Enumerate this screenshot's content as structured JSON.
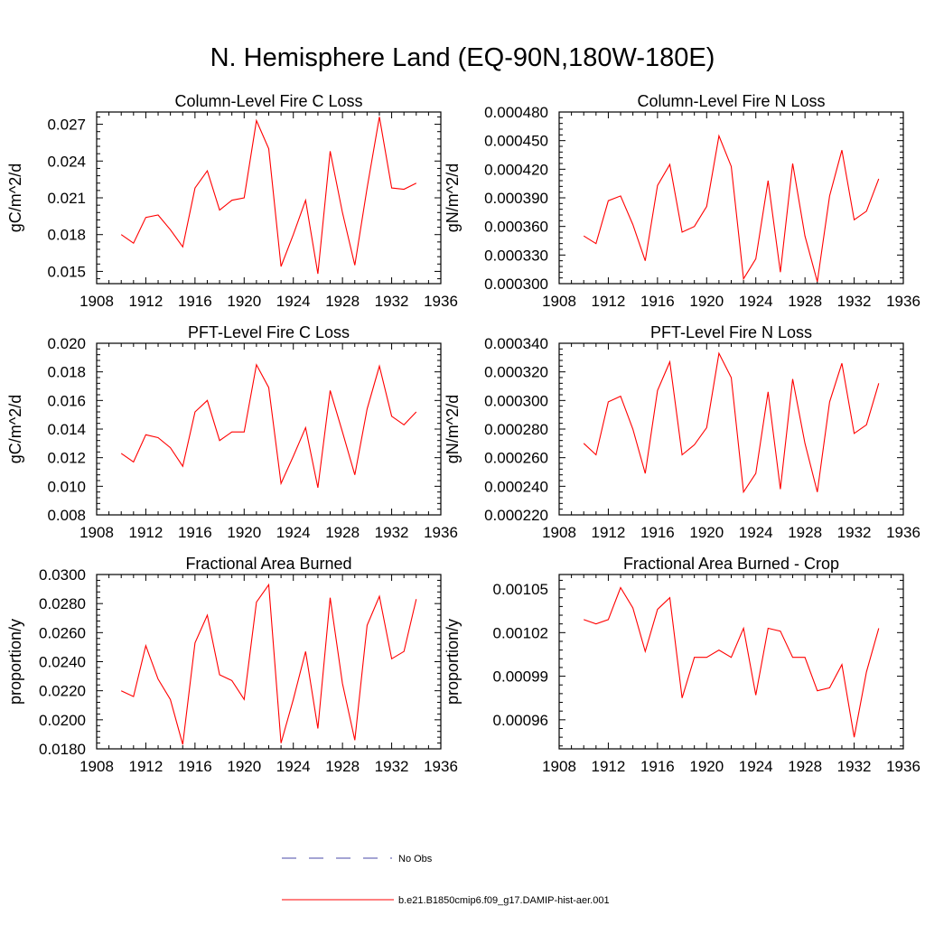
{
  "title": "N. Hemisphere Land (EQ-90N,180W-180E)",
  "legend": {
    "entries": [
      {
        "label": "No Obs",
        "color": "#4a4aa8",
        "style": "dashed"
      },
      {
        "label": "b.e21.B1850cmip6.f09_g17.DAMIP-hist-aer.001",
        "color": "#ff0000",
        "style": "solid"
      }
    ]
  },
  "chart_data": [
    {
      "type": "line",
      "title": "Column-Level Fire C Loss",
      "xlabel": "",
      "ylabel": "gC/m^2/d",
      "xlim": [
        1908,
        1936
      ],
      "xticks": [
        "1908",
        "1912",
        "1916",
        "1920",
        "1924",
        "1928",
        "1932",
        "1936"
      ],
      "ylim": [
        0.014,
        0.028
      ],
      "yticks": [
        "0.015",
        "0.018",
        "0.021",
        "0.024",
        "0.027"
      ],
      "ytick_values": [
        0.015,
        0.018,
        0.021,
        0.024,
        0.027
      ],
      "grid": false,
      "series": [
        {
          "color": "#ff0000",
          "x": [
            1910,
            1911,
            1912,
            1913,
            1914,
            1915,
            1916,
            1917,
            1918,
            1919,
            1920,
            1921,
            1922,
            1923,
            1924,
            1925,
            1926,
            1927,
            1928,
            1929,
            1930,
            1931,
            1932,
            1933,
            1934
          ],
          "values": [
            0.018,
            0.0173,
            0.0194,
            0.0196,
            0.0184,
            0.017,
            0.0218,
            0.0232,
            0.02,
            0.0208,
            0.021,
            0.0273,
            0.025,
            0.0154,
            0.018,
            0.0208,
            0.0148,
            0.0248,
            0.0198,
            0.0155,
            0.0218,
            0.0276,
            0.0218,
            0.0217,
            0.0222
          ]
        }
      ]
    },
    {
      "type": "line",
      "title": "Column-Level Fire N Loss",
      "xlabel": "",
      "ylabel": "gN/m^2/d",
      "xlim": [
        1908,
        1936
      ],
      "xticks": [
        "1908",
        "1912",
        "1916",
        "1920",
        "1924",
        "1928",
        "1932",
        "1936"
      ],
      "ylim": [
        0.0003,
        0.00048
      ],
      "yticks": [
        "0.000300",
        "0.000330",
        "0.000360",
        "0.000390",
        "0.000420",
        "0.000450",
        "0.000480"
      ],
      "ytick_values": [
        0.0003,
        0.00033,
        0.00036,
        0.00039,
        0.00042,
        0.00045,
        0.00048
      ],
      "grid": false,
      "series": [
        {
          "color": "#ff0000",
          "x": [
            1910,
            1911,
            1912,
            1913,
            1914,
            1915,
            1916,
            1917,
            1918,
            1919,
            1920,
            1921,
            1922,
            1923,
            1924,
            1925,
            1926,
            1927,
            1928,
            1929,
            1930,
            1931,
            1932,
            1933,
            1934
          ],
          "values": [
            0.00035,
            0.000342,
            0.000387,
            0.000392,
            0.000362,
            0.000324,
            0.000403,
            0.000425,
            0.000354,
            0.00036,
            0.000381,
            0.000455,
            0.000423,
            0.000305,
            0.000326,
            0.000408,
            0.000312,
            0.000426,
            0.00035,
            0.000302,
            0.000392,
            0.00044,
            0.000367,
            0.000376,
            0.00041
          ]
        }
      ]
    },
    {
      "type": "line",
      "title": "PFT-Level Fire C Loss",
      "xlabel": "",
      "ylabel": "gC/m^2/d",
      "xlim": [
        1908,
        1936
      ],
      "xticks": [
        "1908",
        "1912",
        "1916",
        "1920",
        "1924",
        "1928",
        "1932",
        "1936"
      ],
      "ylim": [
        0.008,
        0.02
      ],
      "yticks": [
        "0.008",
        "0.010",
        "0.012",
        "0.014",
        "0.016",
        "0.018",
        "0.020"
      ],
      "ytick_values": [
        0.008,
        0.01,
        0.012,
        0.014,
        0.016,
        0.018,
        0.02
      ],
      "grid": false,
      "series": [
        {
          "color": "#ff0000",
          "x": [
            1910,
            1911,
            1912,
            1913,
            1914,
            1915,
            1916,
            1917,
            1918,
            1919,
            1920,
            1921,
            1922,
            1923,
            1924,
            1925,
            1926,
            1927,
            1928,
            1929,
            1930,
            1931,
            1932,
            1933,
            1934
          ],
          "values": [
            0.0123,
            0.0117,
            0.0136,
            0.0134,
            0.0127,
            0.0114,
            0.0152,
            0.016,
            0.0132,
            0.0138,
            0.0138,
            0.0185,
            0.0169,
            0.0102,
            0.0121,
            0.0141,
            0.0099,
            0.0167,
            0.0138,
            0.0108,
            0.0154,
            0.0184,
            0.0149,
            0.0143,
            0.0152
          ]
        }
      ]
    },
    {
      "type": "line",
      "title": "PFT-Level Fire N Loss",
      "xlabel": "",
      "ylabel": "gN/m^2/d",
      "xlim": [
        1908,
        1936
      ],
      "xticks": [
        "1908",
        "1912",
        "1916",
        "1920",
        "1924",
        "1928",
        "1932",
        "1936"
      ],
      "ylim": [
        0.00022,
        0.00034
      ],
      "yticks": [
        "0.000220",
        "0.000240",
        "0.000260",
        "0.000280",
        "0.000300",
        "0.000320",
        "0.000340"
      ],
      "ytick_values": [
        0.00022,
        0.00024,
        0.00026,
        0.00028,
        0.0003,
        0.00032,
        0.00034
      ],
      "grid": false,
      "series": [
        {
          "color": "#ff0000",
          "x": [
            1910,
            1911,
            1912,
            1913,
            1914,
            1915,
            1916,
            1917,
            1918,
            1919,
            1920,
            1921,
            1922,
            1923,
            1924,
            1925,
            1926,
            1927,
            1928,
            1929,
            1930,
            1931,
            1932,
            1933,
            1934
          ],
          "values": [
            0.00027,
            0.000262,
            0.000299,
            0.000303,
            0.00028,
            0.000249,
            0.000307,
            0.000327,
            0.000262,
            0.000269,
            0.000281,
            0.000333,
            0.000316,
            0.000236,
            0.000249,
            0.000306,
            0.000238,
            0.000315,
            0.00027,
            0.000236,
            0.000299,
            0.000326,
            0.000277,
            0.000283,
            0.000312
          ]
        }
      ]
    },
    {
      "type": "line",
      "title": "Fractional Area Burned",
      "xlabel": "",
      "ylabel": "proportion/y",
      "xlim": [
        1908,
        1936
      ],
      "xticks": [
        "1908",
        "1912",
        "1916",
        "1920",
        "1924",
        "1928",
        "1932",
        "1936"
      ],
      "ylim": [
        0.018,
        0.03
      ],
      "yticks": [
        "0.0180",
        "0.0200",
        "0.0220",
        "0.0240",
        "0.0260",
        "0.0280",
        "0.0300"
      ],
      "ytick_values": [
        0.018,
        0.02,
        0.022,
        0.024,
        0.026,
        0.028,
        0.03
      ],
      "grid": false,
      "series": [
        {
          "color": "#ff0000",
          "x": [
            1910,
            1911,
            1912,
            1913,
            1914,
            1915,
            1916,
            1917,
            1918,
            1919,
            1920,
            1921,
            1922,
            1923,
            1924,
            1925,
            1926,
            1927,
            1928,
            1929,
            1930,
            1931,
            1932,
            1933,
            1934
          ],
          "values": [
            0.022,
            0.0216,
            0.0251,
            0.0228,
            0.0214,
            0.0183,
            0.0253,
            0.0272,
            0.0231,
            0.0227,
            0.0214,
            0.0281,
            0.0293,
            0.0184,
            0.0214,
            0.0247,
            0.0194,
            0.0284,
            0.0225,
            0.0186,
            0.0265,
            0.0285,
            0.0242,
            0.0247,
            0.0283
          ]
        }
      ]
    },
    {
      "type": "line",
      "title": "Fractional Area Burned - Crop",
      "xlabel": "",
      "ylabel": "proportion/y",
      "xlim": [
        1908,
        1936
      ],
      "xticks": [
        "1908",
        "1912",
        "1916",
        "1920",
        "1924",
        "1928",
        "1932",
        "1936"
      ],
      "ylim": [
        0.00094,
        0.00106
      ],
      "yticks": [
        "0.00096",
        "0.00099",
        "0.00102",
        "0.00105"
      ],
      "ytick_values": [
        0.00096,
        0.00099,
        0.00102,
        0.00105
      ],
      "grid": false,
      "series": [
        {
          "color": "#ff0000",
          "x": [
            1910,
            1911,
            1912,
            1913,
            1914,
            1915,
            1916,
            1917,
            1918,
            1919,
            1920,
            1921,
            1922,
            1923,
            1924,
            1925,
            1926,
            1927,
            1928,
            1929,
            1930,
            1931,
            1932,
            1933,
            1934
          ],
          "values": [
            0.001029,
            0.001026,
            0.001029,
            0.001051,
            0.001037,
            0.001007,
            0.001036,
            0.001044,
            0.000975,
            0.001003,
            0.001003,
            0.001008,
            0.001003,
            0.001023,
            0.000977,
            0.001023,
            0.001021,
            0.001003,
            0.001003,
            0.00098,
            0.000982,
            0.000998,
            0.000948,
            0.000993,
            0.001023
          ]
        }
      ]
    }
  ]
}
